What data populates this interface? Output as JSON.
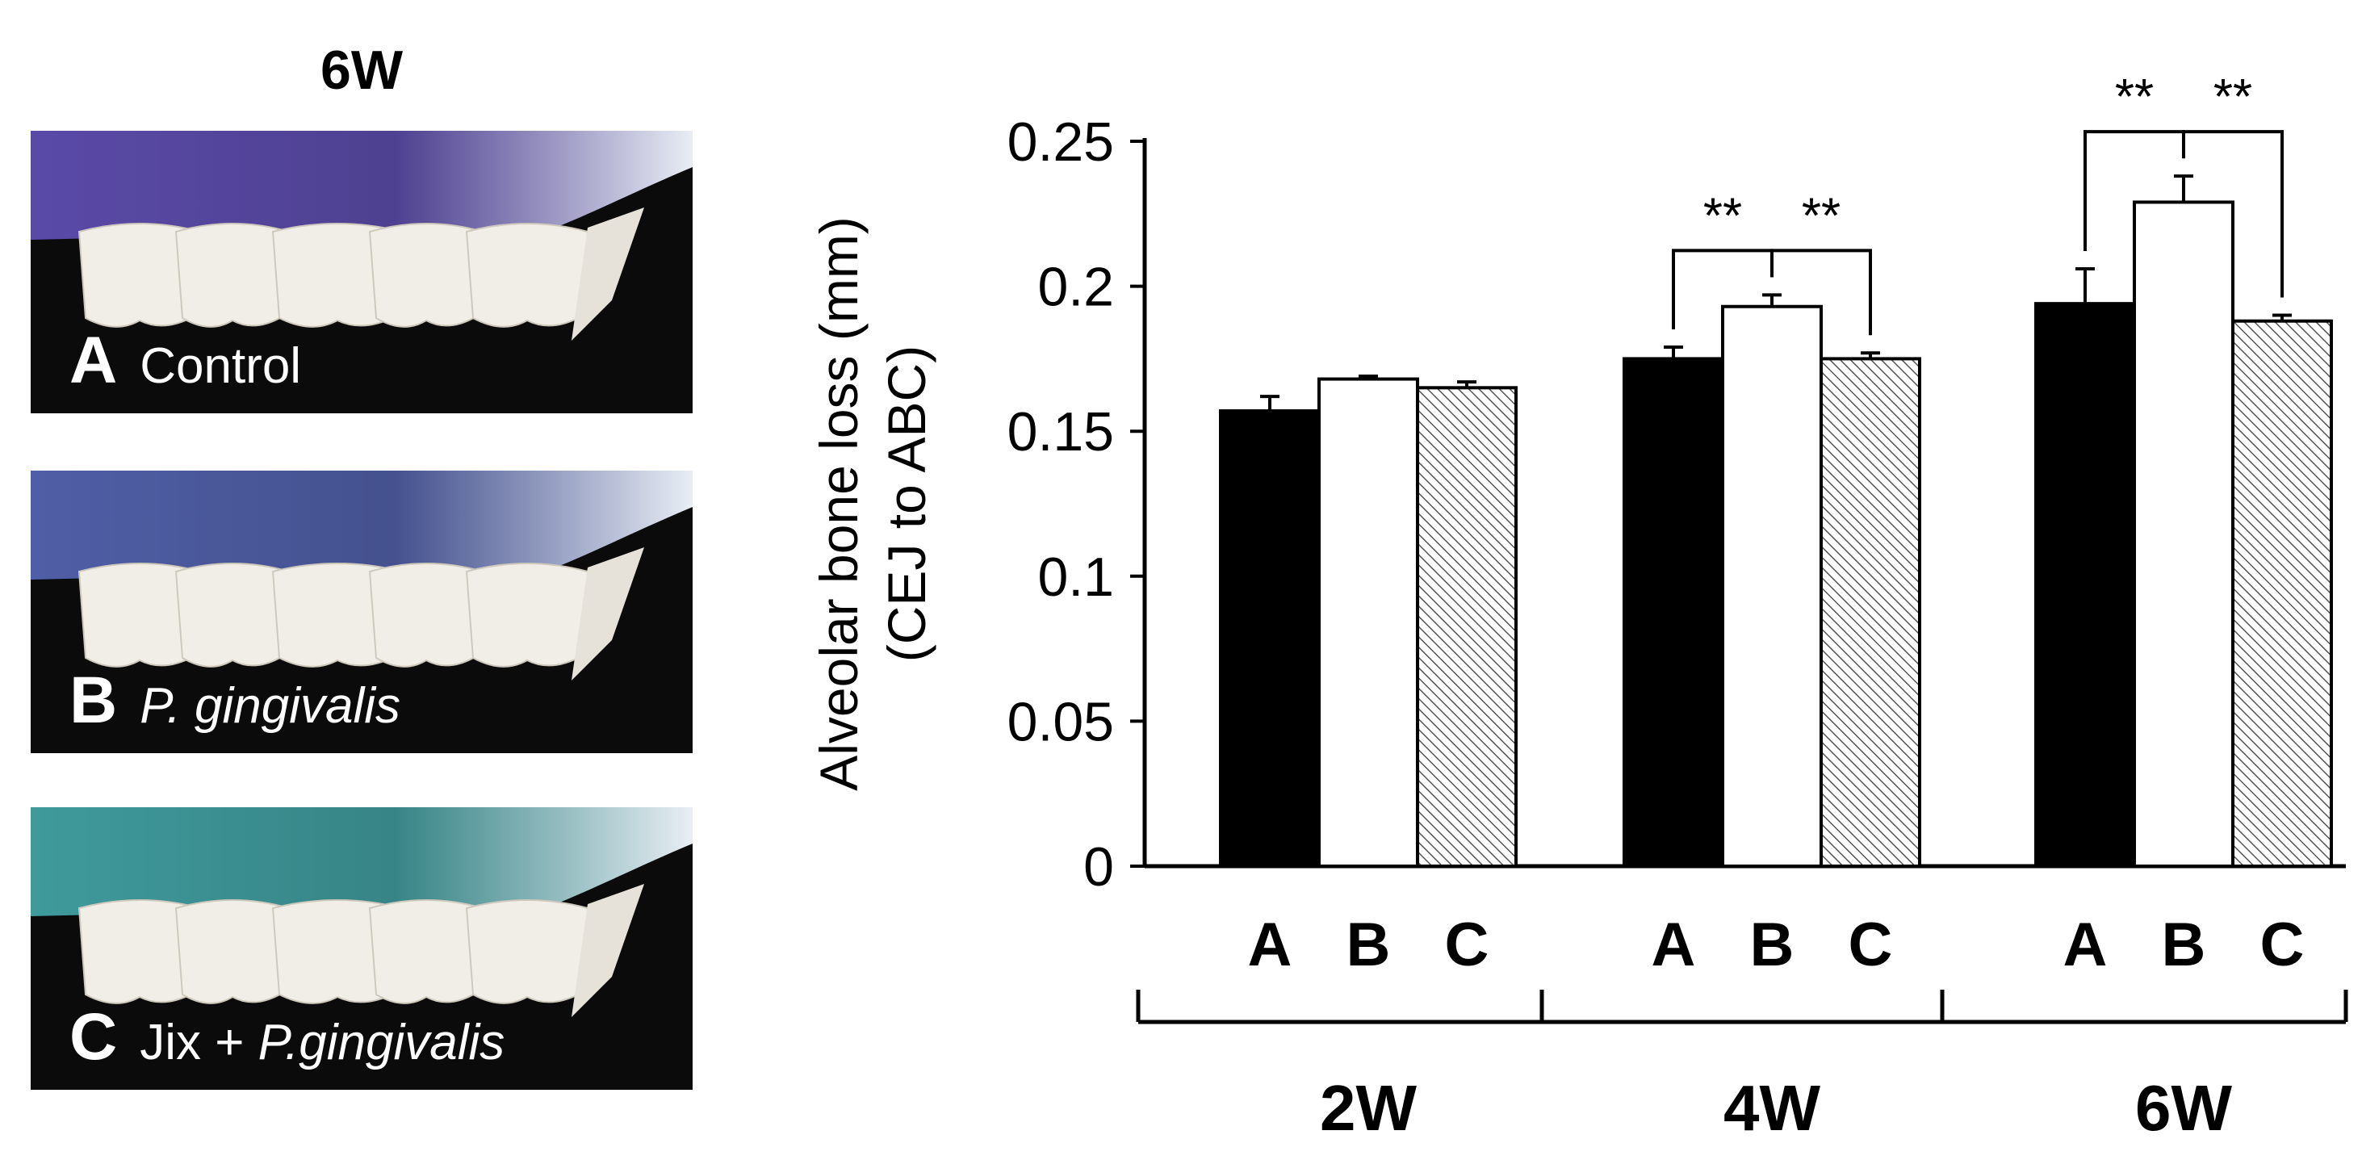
{
  "photos": {
    "title": "6W",
    "panels": [
      {
        "letter": "A",
        "label": "Control",
        "label_italic": "",
        "stain": "#5a4aa8"
      },
      {
        "letter": "B",
        "label": "",
        "label_italic": "P. gingivalis",
        "stain": "#4f5ea6"
      },
      {
        "letter": "C",
        "label": "Jix + ",
        "label_italic": "P.gingivalis",
        "stain": "#3f9a9c"
      }
    ]
  },
  "chart_data": {
    "type": "bar",
    "ylabel_line1": "Alveolar bone loss (mm)",
    "ylabel_line2": "(CEJ to ABC)",
    "ylim": [
      0,
      0.25
    ],
    "yticks": [
      "0",
      "0.05",
      "0.1",
      "0.15",
      "0.2",
      "0.25"
    ],
    "groups": [
      "2W",
      "4W",
      "6W"
    ],
    "categories": [
      "A",
      "B",
      "C"
    ],
    "series": [
      {
        "values": [
          0.157,
          0.175,
          0.194
        ],
        "errors": [
          0.005,
          0.004,
          0.012
        ],
        "fill": "#000000"
      },
      {
        "values": [
          0.168,
          0.193,
          0.229
        ],
        "errors": [
          0.001,
          0.004,
          0.009
        ],
        "fill": "#ffffff"
      },
      {
        "values": [
          0.165,
          0.175,
          0.188
        ],
        "errors": [
          0.002,
          0.002,
          0.002
        ],
        "fill": "hatch"
      }
    ],
    "significance": [
      {
        "group": 1,
        "from": 0,
        "to": 1,
        "label": "**"
      },
      {
        "group": 1,
        "from": 1,
        "to": 2,
        "label": "**"
      },
      {
        "group": 2,
        "from": 0,
        "to": 1,
        "label": "**"
      },
      {
        "group": 2,
        "from": 1,
        "to": 2,
        "label": "**"
      }
    ]
  }
}
